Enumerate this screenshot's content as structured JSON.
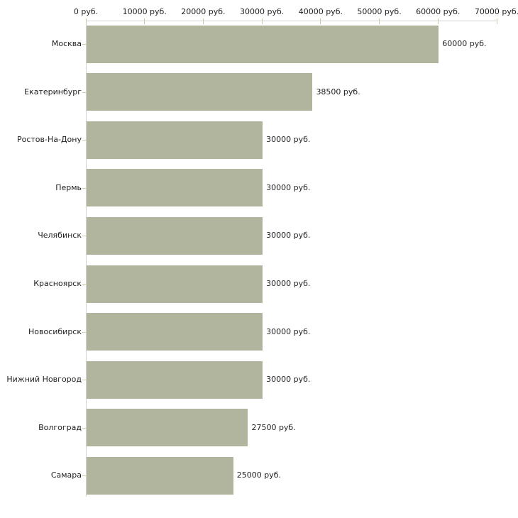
{
  "chart_data": {
    "type": "bar",
    "orientation": "horizontal",
    "title": "",
    "xlabel": "",
    "ylabel": "",
    "categories": [
      "Москва",
      "Екатеринбург",
      "Ростов-На-Дону",
      "Пермь",
      "Челябинск",
      "Красноярск",
      "Новосибирск",
      "Нижний Новгород",
      "Волгоград",
      "Самара"
    ],
    "values": [
      60000,
      38500,
      30000,
      30000,
      30000,
      30000,
      30000,
      30000,
      27500,
      25000
    ],
    "value_labels": [
      "60000 руб.",
      "38500 руб.",
      "30000 руб.",
      "30000 руб.",
      "30000 руб.",
      "30000 руб.",
      "30000 руб.",
      "30000 руб.",
      "27500 руб.",
      "25000 руб."
    ],
    "x_axis": {
      "position": "top",
      "min": 0,
      "max": 70000,
      "ticks": [
        0,
        10000,
        20000,
        30000,
        40000,
        50000,
        60000,
        70000
      ],
      "tick_labels": [
        "0 руб.",
        "10000 руб.",
        "20000 руб.",
        "30000 руб.",
        "40000 руб.",
        "50000 руб.",
        "60000 руб.",
        "70000 руб."
      ]
    },
    "grid": false,
    "legend": false,
    "colors": {
      "bar_fill": "#b1b59d",
      "axis_line": "#d4d4d4",
      "tick_mark": "#ccccA0",
      "text": "#1f1f1f",
      "background": "#ffffff"
    }
  }
}
